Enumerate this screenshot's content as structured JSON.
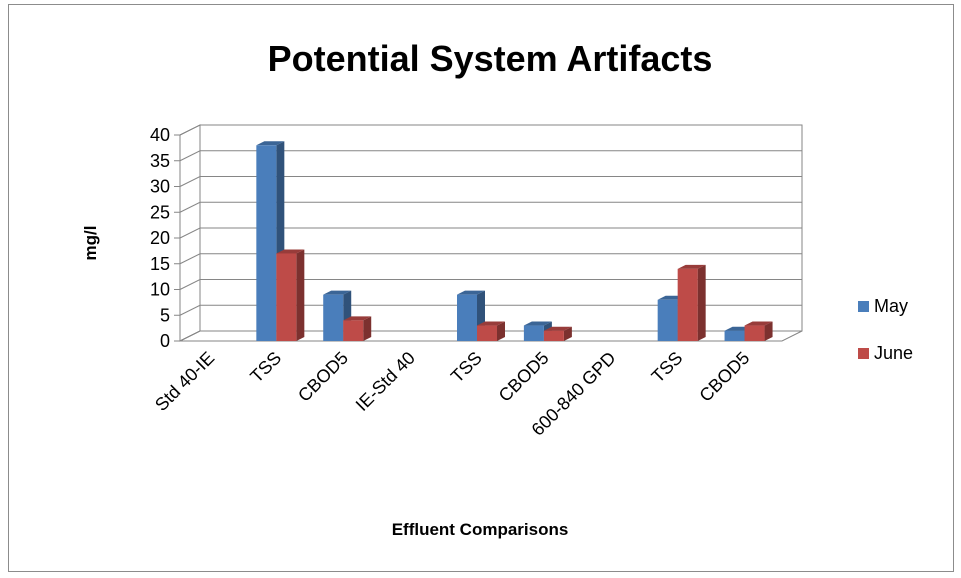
{
  "chart_data": {
    "type": "bar",
    "title": "Potential System Artifacts",
    "xlabel": "Effluent Comparisons",
    "ylabel": "mg/l",
    "ylim": [
      0,
      40
    ],
    "yticks": [
      "0",
      "5",
      "10",
      "15",
      "20",
      "25",
      "30",
      "35",
      "40"
    ],
    "categories": [
      "Std 40-IE",
      "TSS",
      "CBOD5",
      "IE-Std 40",
      "TSS",
      "CBOD5",
      "600-840 GPD",
      "TSS",
      "CBOD5"
    ],
    "series": [
      {
        "name": "May",
        "color": "#4a7ebb",
        "values": [
          null,
          38,
          9,
          null,
          9,
          3,
          null,
          8,
          2
        ]
      },
      {
        "name": "June",
        "color": "#be4b48",
        "values": [
          null,
          17,
          4,
          null,
          3,
          2,
          null,
          14,
          3
        ]
      }
    ],
    "grid": true,
    "legend_position": "right",
    "style": "3d-clustered-column"
  }
}
